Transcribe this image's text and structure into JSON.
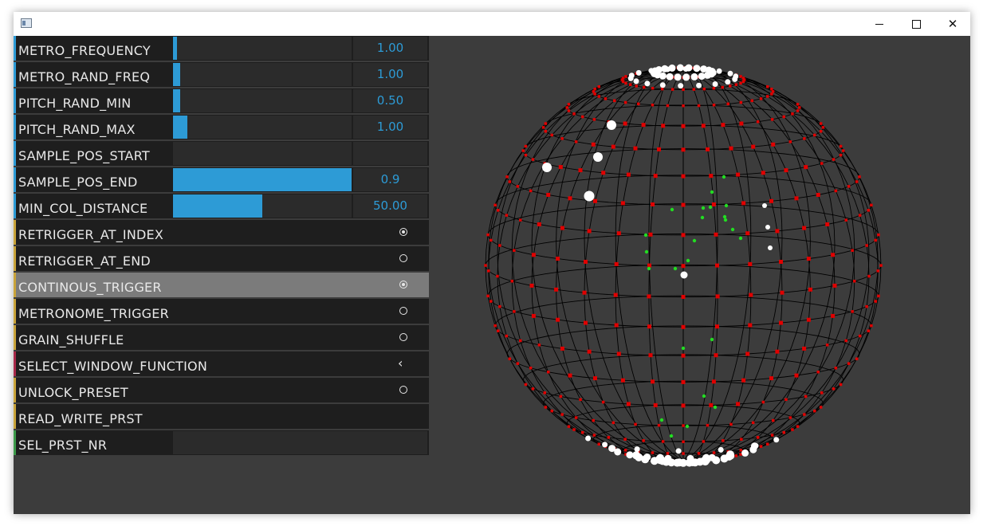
{
  "window": {
    "title": ""
  },
  "titlebar_buttons": {
    "minimize": "minimize-icon",
    "maximize": "maximize-icon",
    "close": "close-icon",
    "close_glyph": "✕"
  },
  "colors": {
    "accent_blue": "#2d9bd6",
    "accent_yellow": "#c9a43a",
    "accent_red": "#a8294a",
    "accent_green": "#3c9a4a",
    "sphere_grid": "#000000",
    "dot_red": "#e00000",
    "dot_white": "#ffffff",
    "dot_green": "#22dd22"
  },
  "params": [
    {
      "label": "METRO_FREQUENCY",
      "kind": "slider",
      "fraction": 0.02,
      "value": "1.00",
      "accent": "blue"
    },
    {
      "label": "METRO_RAND_FREQ",
      "kind": "slider",
      "fraction": 0.04,
      "value": "1.00",
      "accent": "blue"
    },
    {
      "label": "PITCH_RAND_MIN",
      "kind": "slider",
      "fraction": 0.04,
      "value": "0.50",
      "accent": "blue"
    },
    {
      "label": "PITCH_RAND_MAX",
      "kind": "slider",
      "fraction": 0.08,
      "value": "1.00",
      "accent": "blue"
    },
    {
      "label": "SAMPLE_POS_START",
      "kind": "slider",
      "fraction": 0.0,
      "value": "",
      "accent": "blue"
    },
    {
      "label": "SAMPLE_POS_END",
      "kind": "slider",
      "fraction": 1.0,
      "value": "0.9",
      "accent": "blue"
    },
    {
      "label": "MIN_COL_DISTANCE",
      "kind": "slider",
      "fraction": 0.5,
      "value": "50.00",
      "accent": "blue"
    },
    {
      "label": "RETRIGGER_AT_INDEX",
      "kind": "toggle",
      "on": true,
      "accent": "yellow"
    },
    {
      "label": "RETRIGGER_AT_END",
      "kind": "toggle",
      "on": false,
      "accent": "yellow"
    },
    {
      "label": "CONTINOUS_TRIGGER",
      "kind": "toggle",
      "on": true,
      "accent": "yellow",
      "active": true
    },
    {
      "label": "METRONOME_TRIGGER",
      "kind": "toggle",
      "on": false,
      "accent": "yellow"
    },
    {
      "label": "GRAIN_SHUFFLE",
      "kind": "toggle",
      "on": false,
      "accent": "yellow"
    },
    {
      "label": "SELECT_WINDOW_FUNCTION",
      "kind": "menu",
      "chevron": "‹",
      "accent": "red"
    },
    {
      "label": "UNLOCK_PRESET",
      "kind": "toggle",
      "on": false,
      "accent": "yellow"
    },
    {
      "label": "READ_WRITE_PRST",
      "kind": "text",
      "accent": "yellow"
    },
    {
      "label": "SEL_PRST_NR",
      "kind": "number",
      "value": "",
      "accent": "green"
    }
  ]
}
